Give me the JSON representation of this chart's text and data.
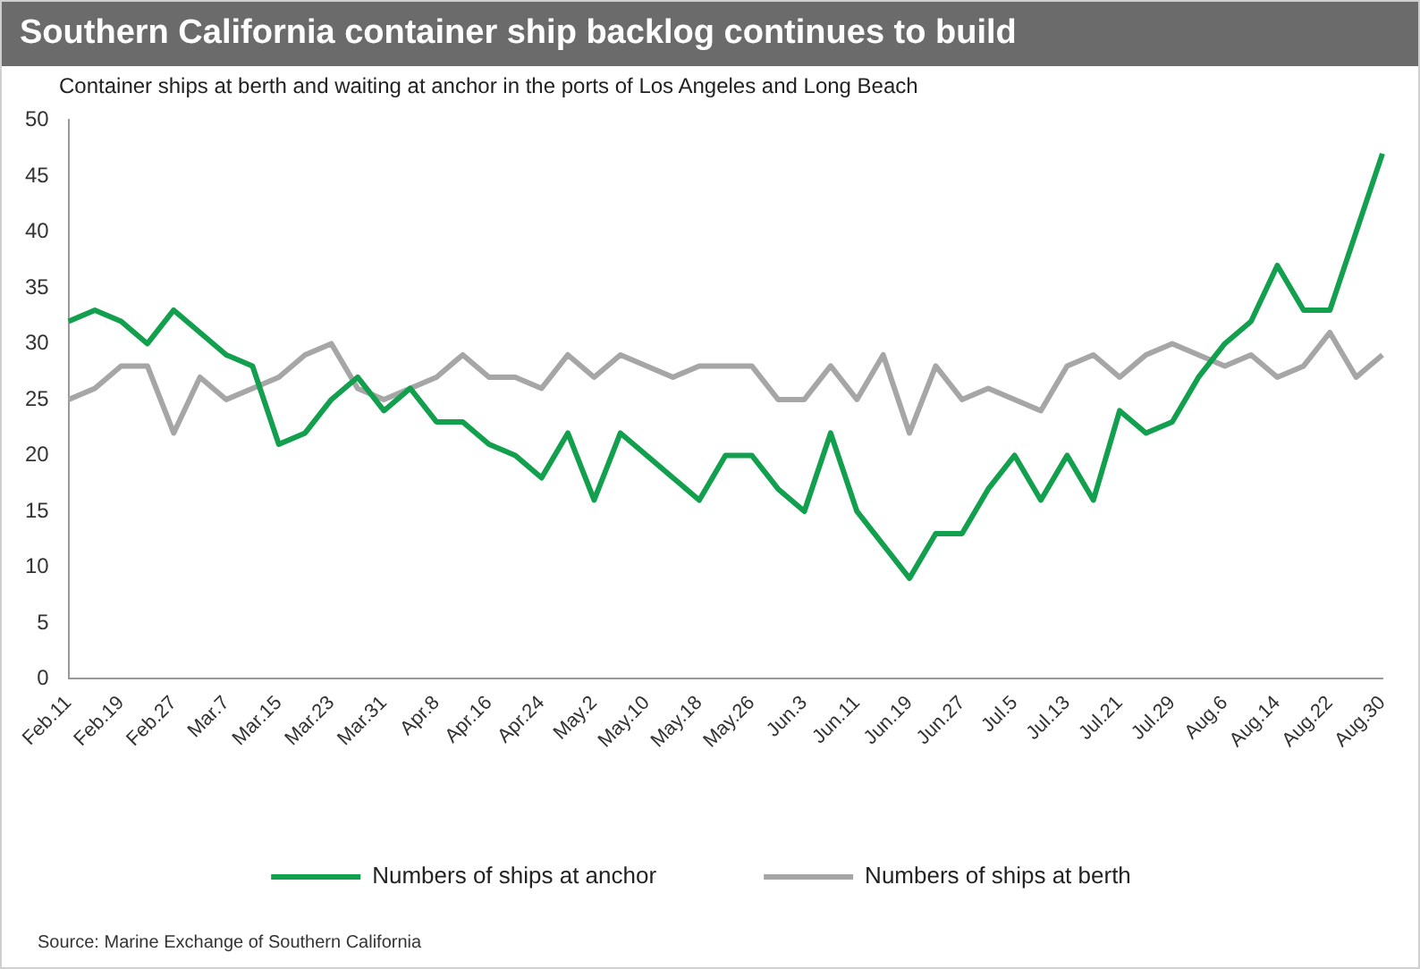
{
  "chart_data": {
    "type": "line",
    "title": "Southern California container ship backlog continues to build",
    "subtitle": "Container ships at berth and waiting at anchor in the ports of Los Angeles and Long Beach",
    "categories": [
      "Feb.11",
      null,
      "Feb.19",
      null,
      "Feb.27",
      null,
      "Mar.7",
      null,
      "Mar.15",
      null,
      "Mar.23",
      null,
      "Mar.31",
      null,
      "Apr.8",
      null,
      "Apr.16",
      null,
      "Apr.24",
      null,
      "May.2",
      null,
      "May.10",
      null,
      "May.18",
      null,
      "May.26",
      null,
      "Jun.3",
      null,
      "Jun.11",
      null,
      "Jun.19",
      null,
      "Jun.27",
      null,
      "Jul.5",
      null,
      "Jul.13",
      null,
      "Jul.21",
      null,
      "Jul.29",
      null,
      "Aug.6",
      null,
      "Aug.14",
      null,
      "Aug.22",
      null,
      "Aug.30"
    ],
    "series": [
      {
        "name": "Numbers of ships at anchor",
        "color": "#12a04e",
        "values": [
          32,
          33,
          32,
          30,
          33,
          31,
          29,
          28,
          21,
          22,
          25,
          27,
          24,
          26,
          23,
          23,
          21,
          20,
          18,
          22,
          16,
          22,
          20,
          18,
          16,
          20,
          20,
          17,
          15,
          22,
          15,
          12,
          9,
          13,
          13,
          17,
          20,
          16,
          20,
          16,
          24,
          22,
          23,
          27,
          30,
          32,
          37,
          33,
          33,
          40,
          47
        ]
      },
      {
        "name": "Numbers of ships at berth",
        "color": "#a6a6a6",
        "values": [
          25,
          26,
          28,
          28,
          22,
          27,
          25,
          26,
          27,
          29,
          30,
          26,
          25,
          26,
          27,
          29,
          27,
          27,
          26,
          29,
          27,
          29,
          28,
          27,
          28,
          28,
          28,
          25,
          25,
          28,
          25,
          29,
          22,
          28,
          25,
          26,
          25,
          24,
          28,
          29,
          27,
          29,
          30,
          29,
          28,
          29,
          27,
          28,
          31,
          27,
          29
        ]
      }
    ],
    "ylim": [
      0,
      50
    ],
    "yticks": [
      0,
      5,
      10,
      15,
      20,
      25,
      30,
      35,
      40,
      45,
      50
    ],
    "grid": false,
    "legend": "bottom",
    "line_style": "solid",
    "marker": "none",
    "annotations": [
      "Source: Marine Exchange of Southern California"
    ]
  }
}
